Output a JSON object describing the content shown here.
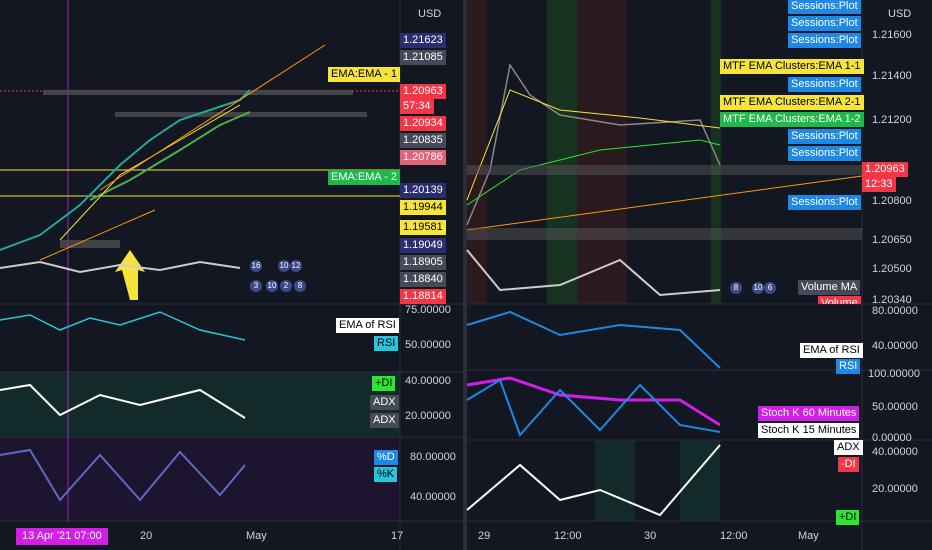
{
  "left": {
    "currency": "USD",
    "price_scale": [
      "1.21623",
      "1.21085",
      "1.20963",
      "57:34",
      "1.20934",
      "1.20835",
      "1.20786",
      "1.20139",
      "1.19944",
      "1.19581",
      "1.19049",
      "1.18905",
      "1.18840",
      "1.18814"
    ],
    "overlays": [
      "EMA:EMA - 1",
      "EMA:EMA - 2"
    ],
    "badges": [
      "16",
      "10",
      "12",
      "3",
      "10",
      "2",
      "8"
    ],
    "rsi": {
      "axis": [
        "75.00000",
        "50.00000"
      ],
      "legend": [
        "EMA of RSI",
        "RSI"
      ]
    },
    "adx": {
      "axis": [
        "40.00000",
        "20.00000"
      ],
      "legend": [
        "+DI",
        "ADX",
        "ADX"
      ]
    },
    "stoch": {
      "axis": [
        "80.00000",
        "40.00000"
      ],
      "legend": [
        "%D",
        "%K"
      ]
    },
    "time_axis": [
      "20",
      "May",
      "17"
    ],
    "crosshair_time": "13 Apr '21   07:00"
  },
  "right": {
    "currency": "USD",
    "price_scale": [
      "1.21600",
      "1.21400",
      "1.21200",
      "1.20963",
      "12:33",
      "1.20800",
      "1.20650",
      "1.20500",
      "1.20340"
    ],
    "legend": [
      "Sessions:Plot",
      "Sessions:Plot",
      "Sessions:Plot",
      "MTF EMA Clusters:EMA 1-1",
      "Sessions:Plot",
      "MTF EMA Clusters:EMA 2-1",
      "MTF EMA Clusters:EMA 1-2",
      "Sessions:Plot",
      "Sessions:Plot",
      "Sessions:Plot"
    ],
    "volume": [
      "Volume MA",
      "Volume"
    ],
    "badges": [
      "8",
      "10",
      "6"
    ],
    "rsi": {
      "axis": [
        "80.00000",
        "40.00000"
      ],
      "legend": [
        "EMA of RSI",
        "RSI"
      ]
    },
    "stoch": {
      "axis": [
        "100.00000",
        "50.00000",
        "0.00000"
      ],
      "legend": [
        "Stoch K 60 Minutes",
        "Stoch K 15 Minutes"
      ]
    },
    "adx": {
      "axis": [
        "40.00000",
        "20.00000"
      ],
      "legend": [
        "ADX",
        "-DI",
        "+DI"
      ]
    },
    "time_axis": [
      "29",
      "12:00",
      "30",
      "12:00",
      "May"
    ]
  }
}
